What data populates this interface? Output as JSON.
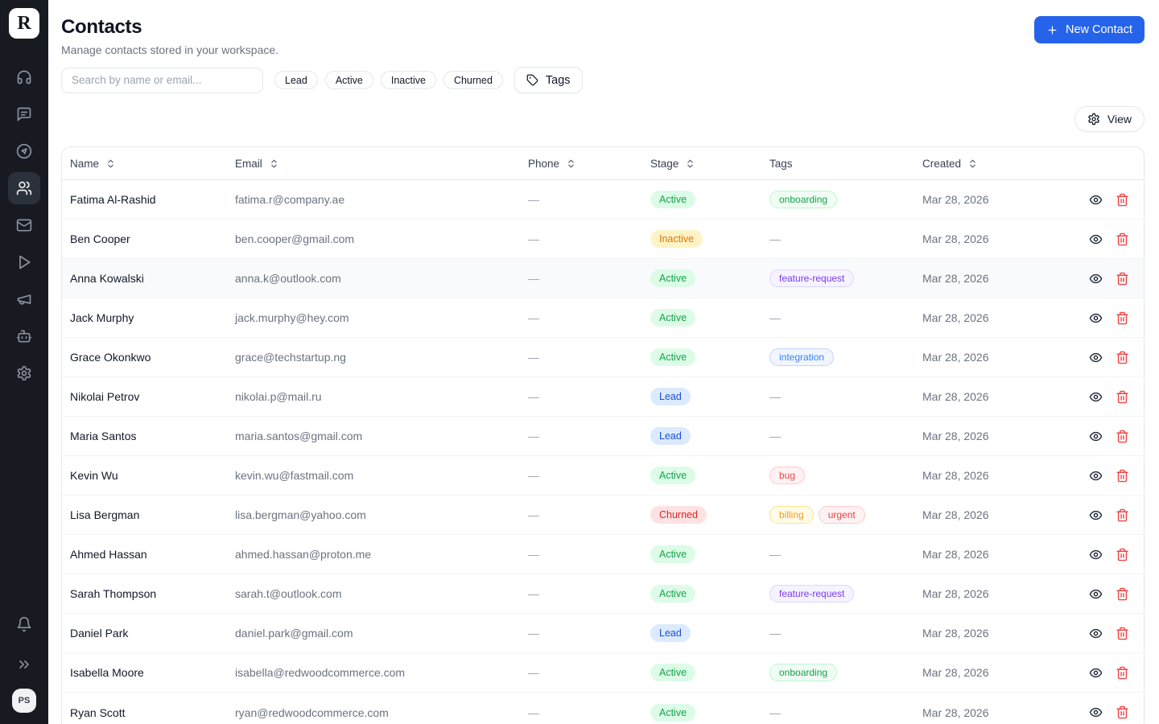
{
  "sidebar": {
    "logo_letter": "R",
    "nav_icons": [
      "headset",
      "chat",
      "compass-send",
      "users",
      "mail",
      "play",
      "megaphone",
      "bot",
      "settings"
    ],
    "active_icon": "users",
    "avatar_initials": "PS"
  },
  "header": {
    "title": "Contacts",
    "subtitle": "Manage contacts stored in your workspace.",
    "new_contact_label": "New Contact"
  },
  "toolbar": {
    "search_placeholder": "Search by name or email...",
    "filters": [
      "Lead",
      "Active",
      "Inactive",
      "Churned"
    ],
    "tags_button_label": "Tags",
    "view_button_label": "View"
  },
  "table": {
    "columns": [
      {
        "label": "Name",
        "sortable": true
      },
      {
        "label": "Email",
        "sortable": true
      },
      {
        "label": "Phone",
        "sortable": true
      },
      {
        "label": "Stage",
        "sortable": true
      },
      {
        "label": "Tags",
        "sortable": false
      },
      {
        "label": "Created",
        "sortable": true
      }
    ],
    "empty_value": "—",
    "rows": [
      {
        "name": "Fatima Al-Rashid",
        "email": "fatima.r@company.ae",
        "phone": "—",
        "stage": "Active",
        "tags": [
          "onboarding"
        ],
        "created": "Mar 28, 2026",
        "highlighted": false
      },
      {
        "name": "Ben Cooper",
        "email": "ben.cooper@gmail.com",
        "phone": "—",
        "stage": "Inactive",
        "tags": [],
        "created": "Mar 28, 2026",
        "highlighted": false
      },
      {
        "name": "Anna Kowalski",
        "email": "anna.k@outlook.com",
        "phone": "—",
        "stage": "Active",
        "tags": [
          "feature-request"
        ],
        "created": "Mar 28, 2026",
        "highlighted": true
      },
      {
        "name": "Jack Murphy",
        "email": "jack.murphy@hey.com",
        "phone": "—",
        "stage": "Active",
        "tags": [],
        "created": "Mar 28, 2026",
        "highlighted": false
      },
      {
        "name": "Grace Okonkwo",
        "email": "grace@techstartup.ng",
        "phone": "—",
        "stage": "Active",
        "tags": [
          "integration"
        ],
        "created": "Mar 28, 2026",
        "highlighted": false
      },
      {
        "name": "Nikolai Petrov",
        "email": "nikolai.p@mail.ru",
        "phone": "—",
        "stage": "Lead",
        "tags": [],
        "created": "Mar 28, 2026",
        "highlighted": false
      },
      {
        "name": "Maria Santos",
        "email": "maria.santos@gmail.com",
        "phone": "—",
        "stage": "Lead",
        "tags": [],
        "created": "Mar 28, 2026",
        "highlighted": false
      },
      {
        "name": "Kevin Wu",
        "email": "kevin.wu@fastmail.com",
        "phone": "—",
        "stage": "Active",
        "tags": [
          "bug"
        ],
        "created": "Mar 28, 2026",
        "highlighted": false
      },
      {
        "name": "Lisa Bergman",
        "email": "lisa.bergman@yahoo.com",
        "phone": "—",
        "stage": "Churned",
        "tags": [
          "billing",
          "urgent"
        ],
        "created": "Mar 28, 2026",
        "highlighted": false
      },
      {
        "name": "Ahmed Hassan",
        "email": "ahmed.hassan@proton.me",
        "phone": "—",
        "stage": "Active",
        "tags": [],
        "created": "Mar 28, 2026",
        "highlighted": false
      },
      {
        "name": "Sarah Thompson",
        "email": "sarah.t@outlook.com",
        "phone": "—",
        "stage": "Active",
        "tags": [
          "feature-request"
        ],
        "created": "Mar 28, 2026",
        "highlighted": false
      },
      {
        "name": "Daniel Park",
        "email": "daniel.park@gmail.com",
        "phone": "—",
        "stage": "Lead",
        "tags": [],
        "created": "Mar 28, 2026",
        "highlighted": false
      },
      {
        "name": "Isabella Moore",
        "email": "isabella@redwoodcommerce.com",
        "phone": "—",
        "stage": "Active",
        "tags": [
          "onboarding"
        ],
        "created": "Mar 28, 2026",
        "highlighted": false
      },
      {
        "name": "Ryan Scott",
        "email": "ryan@redwoodcommerce.com",
        "phone": "—",
        "stage": "Active",
        "tags": [],
        "created": "Mar 28, 2026",
        "highlighted": false
      }
    ]
  },
  "colors": {
    "accent": "#2563eb",
    "sidebar_bg": "#171b21",
    "stage": {
      "Active": {
        "bg": "#dcfce7",
        "text": "#16a34a"
      },
      "Inactive": {
        "bg": "#fef3c7",
        "text": "#d97706"
      },
      "Lead": {
        "bg": "#dbeafe",
        "text": "#1d4ed8"
      },
      "Churned": {
        "bg": "#fee2e2",
        "text": "#dc2626"
      }
    },
    "tags": {
      "onboarding": {
        "bg": "#f0fdf4",
        "text": "#16a34a",
        "border": "#bbf7d0"
      },
      "feature-request": {
        "bg": "#f5f3ff",
        "text": "#7c3aed",
        "border": "#ddd6fe"
      },
      "integration": {
        "bg": "#eff6ff",
        "text": "#3b82f6",
        "border": "#c7d2fe"
      },
      "bug": {
        "bg": "#fef2f2",
        "text": "#ef4444",
        "border": "#fecaca"
      },
      "billing": {
        "bg": "#fffbeb",
        "text": "#f59e0b",
        "border": "#fde68a"
      },
      "urgent": {
        "bg": "#fef2f2",
        "text": "#ef4444",
        "border": "#fecaca"
      }
    }
  }
}
